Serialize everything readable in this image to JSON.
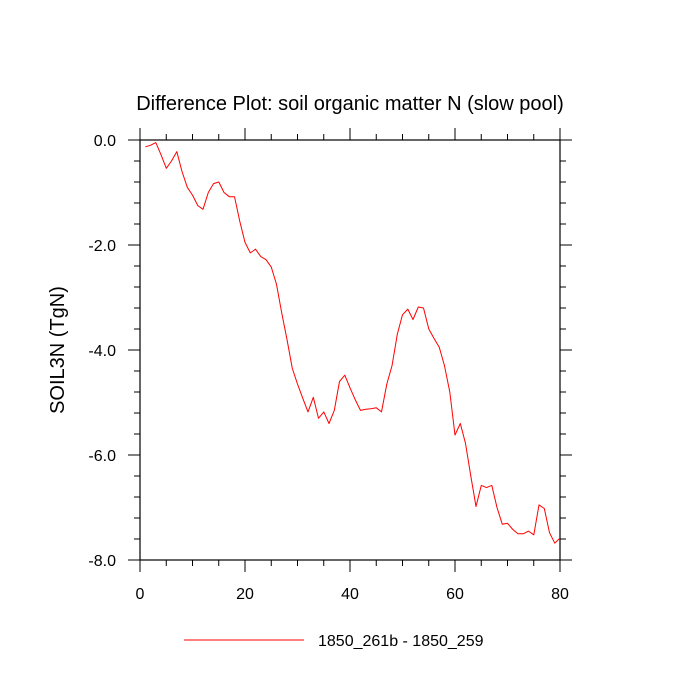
{
  "chart_data": {
    "type": "line",
    "title": "Difference Plot: soil organic matter N (slow pool)",
    "ylabel": "SOIL3N  (TgN)",
    "xlabel": "",
    "xlim": [
      0,
      80
    ],
    "ylim": [
      -8.0,
      0.0
    ],
    "x_ticks": [
      0,
      20,
      40,
      60,
      80
    ],
    "x_tick_labels": [
      "0",
      "20",
      "40",
      "60",
      "80"
    ],
    "y_ticks": [
      0,
      -2,
      -4,
      -6,
      -8
    ],
    "y_tick_labels": [
      "0.0",
      "-2.0",
      "-4.0",
      "-6.0",
      "-8.0"
    ],
    "grid": false,
    "legend_position": "bottom",
    "series": [
      {
        "name": "1850_261b - 1850_259",
        "color": "#ff0000",
        "x": [
          1,
          2,
          3,
          4,
          5,
          6,
          7,
          8,
          9,
          10,
          11,
          12,
          13,
          14,
          15,
          16,
          17,
          18,
          19,
          20,
          21,
          22,
          23,
          24,
          25,
          26,
          27,
          28,
          29,
          30,
          31,
          32,
          33,
          34,
          35,
          36,
          37,
          38,
          39,
          40,
          41,
          42,
          43,
          44,
          45,
          46,
          47,
          48,
          49,
          50,
          51,
          52,
          53,
          54,
          55,
          56,
          57,
          58,
          59,
          60,
          61,
          62,
          63,
          64,
          65,
          66,
          67,
          68,
          69,
          70,
          71,
          72,
          73,
          74,
          75,
          76,
          77,
          78,
          79,
          80
        ],
        "y": [
          -0.13,
          -0.1,
          -0.05,
          -0.28,
          -0.54,
          -0.4,
          -0.22,
          -0.6,
          -0.9,
          -1.05,
          -1.25,
          -1.32,
          -1.0,
          -0.83,
          -0.8,
          -1.0,
          -1.08,
          -1.08,
          -1.55,
          -1.95,
          -2.15,
          -2.08,
          -2.22,
          -2.28,
          -2.42,
          -2.75,
          -3.3,
          -3.8,
          -4.35,
          -4.65,
          -4.92,
          -5.18,
          -4.9,
          -5.3,
          -5.18,
          -5.4,
          -5.15,
          -4.6,
          -4.48,
          -4.72,
          -4.95,
          -5.15,
          -5.13,
          -5.12,
          -5.1,
          -5.18,
          -4.65,
          -4.3,
          -3.7,
          -3.33,
          -3.22,
          -3.42,
          -3.18,
          -3.2,
          -3.6,
          -3.78,
          -3.95,
          -4.3,
          -4.8,
          -5.62,
          -5.4,
          -5.78,
          -6.4,
          -6.98,
          -6.58,
          -6.62,
          -6.58,
          -7.0,
          -7.32,
          -7.3,
          -7.42,
          -7.5,
          -7.5,
          -7.45,
          -7.52,
          -6.95,
          -7.02,
          -7.48,
          -7.68,
          -7.58
        ]
      }
    ]
  }
}
